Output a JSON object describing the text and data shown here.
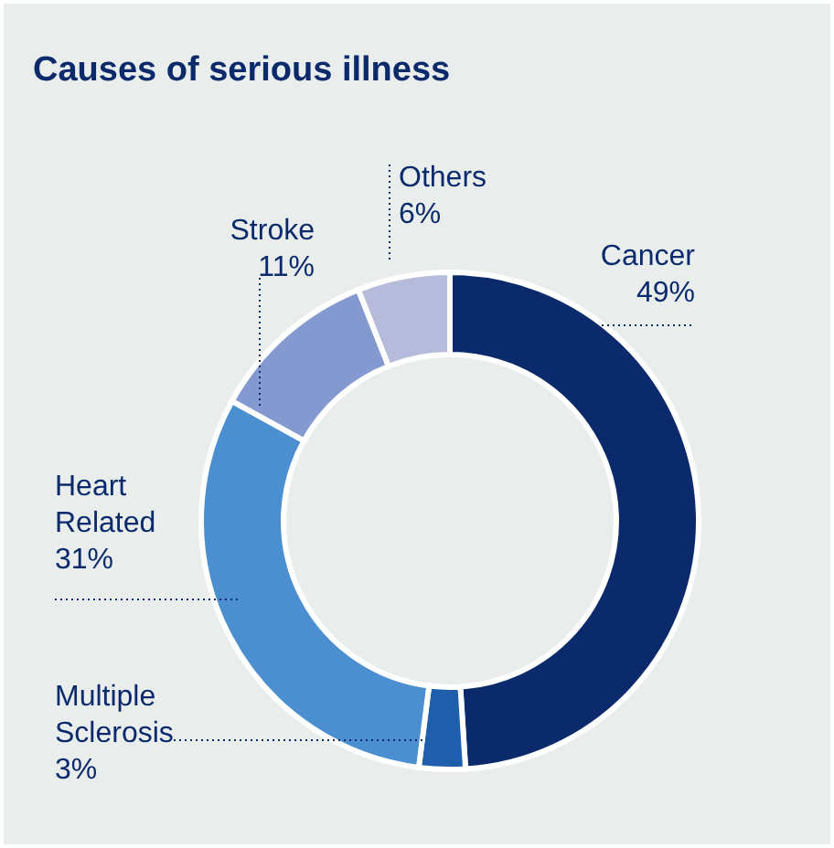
{
  "chart_data": {
    "type": "donut",
    "title": "Causes of serious illness",
    "categories": [
      "Cancer",
      "Multiple Sclerosis",
      "Heart Related",
      "Stroke",
      "Others"
    ],
    "values": [
      49,
      3,
      31,
      11,
      6
    ],
    "colors": [
      "#0b2a6b",
      "#1e5eab",
      "#4b8fd0",
      "#8399d0",
      "#b6bbdc"
    ],
    "value_labels": [
      "49%",
      "3%",
      "31%",
      "11%",
      "6%"
    ],
    "legend": false
  }
}
